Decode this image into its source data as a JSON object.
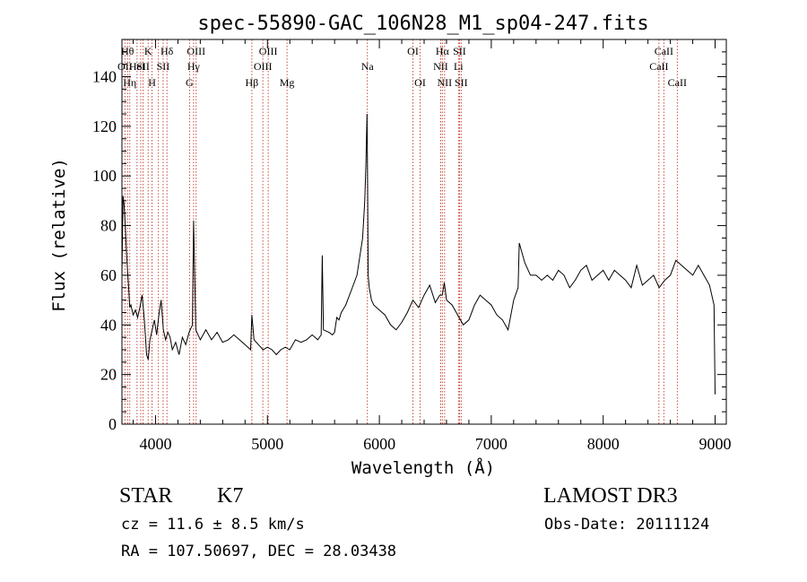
{
  "chart_data": {
    "type": "line",
    "title": "spec-55890-GAC_106N28_M1_sp04-247.fits",
    "xlabel": "Wavelength (Å)",
    "ylabel": "Flux (relative)",
    "xlim": [
      3700,
      9100
    ],
    "ylim": [
      0,
      155
    ],
    "x_ticks": [
      4000,
      5000,
      6000,
      7000,
      8000,
      9000
    ],
    "y_ticks": [
      0,
      20,
      40,
      60,
      80,
      100,
      120,
      140
    ],
    "series": [
      {
        "x": [
          3700,
          3710,
          3720,
          3730,
          3740,
          3750,
          3760,
          3770,
          3780,
          3800,
          3820,
          3840,
          3860,
          3880,
          3900,
          3920,
          3935,
          3950,
          3970,
          3990,
          4010,
          4030,
          4050,
          4070,
          4090,
          4110,
          4130,
          4150,
          4180,
          4210,
          4240,
          4270,
          4300,
          4330,
          4340,
          4360,
          4380,
          4400,
          4450,
          4500,
          4550,
          4600,
          4650,
          4700,
          4750,
          4800,
          4850,
          4861,
          4880,
          4920,
          4960,
          5000,
          5040,
          5080,
          5120,
          5160,
          5200,
          5250,
          5300,
          5350,
          5400,
          5450,
          5480,
          5490,
          5500,
          5550,
          5580,
          5600,
          5620,
          5640,
          5660,
          5700,
          5750,
          5800,
          5850,
          5870,
          5880,
          5890,
          5895,
          5900,
          5910,
          5930,
          5950,
          6000,
          6050,
          6100,
          6150,
          6200,
          6250,
          6300,
          6350,
          6400,
          6450,
          6500,
          6540,
          6563,
          6580,
          6600,
          6650,
          6700,
          6750,
          6800,
          6850,
          6900,
          6950,
          7000,
          7050,
          7100,
          7150,
          7200,
          7240,
          7250,
          7300,
          7350,
          7400,
          7450,
          7500,
          7550,
          7600,
          7650,
          7700,
          7750,
          7800,
          7850,
          7900,
          7950,
          8000,
          8050,
          8100,
          8150,
          8200,
          8250,
          8300,
          8350,
          8400,
          8450,
          8500,
          8550,
          8600,
          8650,
          8700,
          8750,
          8800,
          8850,
          8900,
          8950,
          8990,
          9000
        ],
        "y": [
          60,
          92,
          88,
          80,
          70,
          62,
          55,
          47,
          48,
          44,
          46,
          43,
          47,
          52,
          42,
          28,
          26,
          34,
          38,
          42,
          36,
          44,
          50,
          38,
          34,
          37,
          35,
          30,
          33,
          28,
          35,
          32,
          37,
          40,
          82,
          38,
          36,
          34,
          38,
          34,
          37,
          33,
          34,
          36,
          34,
          32,
          30,
          44,
          34,
          32,
          30,
          31,
          30,
          28,
          30,
          31,
          30,
          34,
          33,
          34,
          36,
          34,
          36,
          68,
          38,
          37,
          36,
          37,
          43,
          42,
          45,
          48,
          54,
          60,
          75,
          90,
          105,
          125,
          96,
          60,
          55,
          50,
          48,
          46,
          44,
          40,
          38,
          41,
          45,
          50,
          47,
          52,
          56,
          49,
          52,
          52,
          57,
          50,
          48,
          44,
          40,
          42,
          48,
          52,
          50,
          48,
          44,
          42,
          38,
          50,
          55,
          73,
          65,
          60,
          60,
          58,
          60,
          58,
          62,
          60,
          55,
          58,
          62,
          64,
          58,
          60,
          62,
          58,
          62,
          60,
          58,
          55,
          64,
          56,
          58,
          60,
          55,
          58,
          60,
          66,
          64,
          62,
          60,
          64,
          60,
          56,
          48,
          12
        ]
      }
    ],
    "lines": [
      {
        "x": 3727,
        "label": "OII",
        "row": 2
      },
      {
        "x": 3750,
        "label": "Hθ",
        "row": 1
      },
      {
        "x": 3770,
        "label": "Hη",
        "row": 3
      },
      {
        "x": 3835,
        "label": "HeI",
        "row": 2
      },
      {
        "x": 3868,
        "label": "",
        "row": 0
      },
      {
        "x": 3889,
        "label": "SII",
        "row": 2
      },
      {
        "x": 3934,
        "label": "K",
        "row": 1
      },
      {
        "x": 3969,
        "label": "H",
        "row": 3
      },
      {
        "x": 4026,
        "label": "",
        "row": 0
      },
      {
        "x": 4068,
        "label": "SII",
        "row": 2
      },
      {
        "x": 4102,
        "label": "Hδ",
        "row": 1
      },
      {
        "x": 4304,
        "label": "G",
        "row": 3
      },
      {
        "x": 4340,
        "label": "Hγ",
        "row": 2
      },
      {
        "x": 4363,
        "label": "OIII",
        "row": 1
      },
      {
        "x": 4861,
        "label": "Hβ",
        "row": 3
      },
      {
        "x": 4959,
        "label": "OIII",
        "row": 2
      },
      {
        "x": 5007,
        "label": "OIII",
        "row": 1
      },
      {
        "x": 5175,
        "label": "Mg",
        "row": 3
      },
      {
        "x": 5893,
        "label": "Na",
        "row": 2
      },
      {
        "x": 6300,
        "label": "OI",
        "row": 1
      },
      {
        "x": 6364,
        "label": "OI",
        "row": 3
      },
      {
        "x": 6548,
        "label": "NII",
        "row": 2
      },
      {
        "x": 6563,
        "label": "Hα",
        "row": 1
      },
      {
        "x": 6583,
        "label": "NII",
        "row": 3
      },
      {
        "x": 6707,
        "label": "Li",
        "row": 2
      },
      {
        "x": 6716,
        "label": "SII",
        "row": 1
      },
      {
        "x": 6731,
        "label": "SII",
        "row": 3
      },
      {
        "x": 8498,
        "label": "CaII",
        "row": 2
      },
      {
        "x": 8542,
        "label": "CaII",
        "row": 1
      },
      {
        "x": 8662,
        "label": "CaII",
        "row": 3
      }
    ]
  },
  "info": {
    "class": "STAR",
    "subclass": "K7",
    "survey": "LAMOST DR3",
    "redshift_text": "cz = 11.6 ± 8.5 km/s",
    "obs_date_text": "Obs-Date: 20111124",
    "coords_text": "RA = 107.50697, DEC =  28.03438"
  }
}
